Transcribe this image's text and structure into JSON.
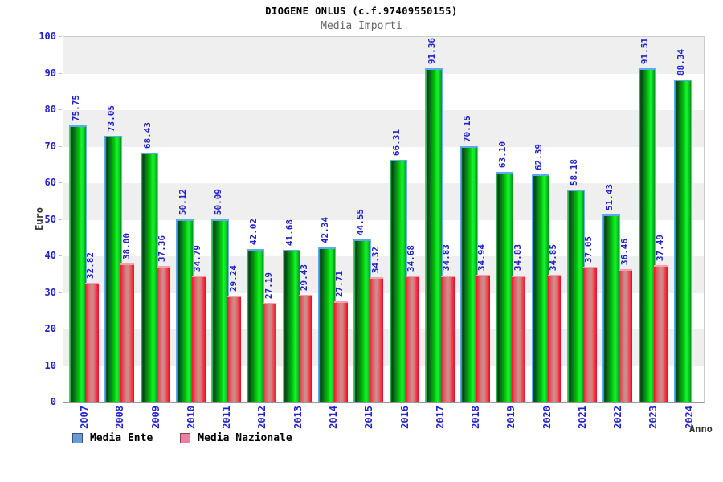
{
  "header": {
    "title": "DIOGENE ONLUS (c.f.97409550155)",
    "subtitle": "Media Importi"
  },
  "colors": {
    "label_blue": "#2222cc",
    "band_gray": "#efefef",
    "green_bar_bright": "#00d400",
    "green_bar_dark": "#063f10",
    "green_bar_cap": "#5ea9f2",
    "red_bar_bright": "#fb0f2f",
    "red_bar_pale_center": "#c9908f",
    "red_bar_cap": "#ff9fae",
    "legend_swatch_blue": "#6b9bd2",
    "legend_swatch_pink": "#ee7fa0"
  },
  "chart_data": {
    "type": "bar",
    "title": "DIOGENE ONLUS (c.f.97409550155)",
    "subtitle": "Media Importi",
    "xlabel": "Anno",
    "ylabel": "Euro",
    "ylim": [
      0,
      100
    ],
    "ytick_step": 10,
    "grid": "alternating-horizontal-bands",
    "legend_position": "bottom-left",
    "value_label_decimals": 2,
    "value_label_rotation": 90,
    "x_tick_rotation": 90,
    "categories": [
      "2007",
      "2008",
      "2009",
      "2010",
      "2011",
      "2012",
      "2013",
      "2014",
      "2015",
      "2016",
      "2017",
      "2018",
      "2019",
      "2020",
      "2021",
      "2022",
      "2023",
      "2024"
    ],
    "series": [
      {
        "name": "Media Ente",
        "bar_style": "green",
        "values": [
          75.75,
          73.05,
          68.43,
          50.12,
          50.09,
          42.02,
          41.68,
          42.34,
          44.55,
          66.31,
          91.36,
          70.15,
          63.1,
          62.39,
          58.18,
          51.43,
          91.51,
          88.34
        ]
      },
      {
        "name": "Media Nazionale",
        "bar_style": "red",
        "values": [
          32.82,
          38.0,
          37.36,
          34.79,
          29.24,
          27.19,
          29.43,
          27.71,
          34.32,
          34.68,
          34.83,
          34.94,
          34.83,
          34.85,
          37.05,
          36.46,
          37.49,
          null
        ]
      }
    ]
  }
}
